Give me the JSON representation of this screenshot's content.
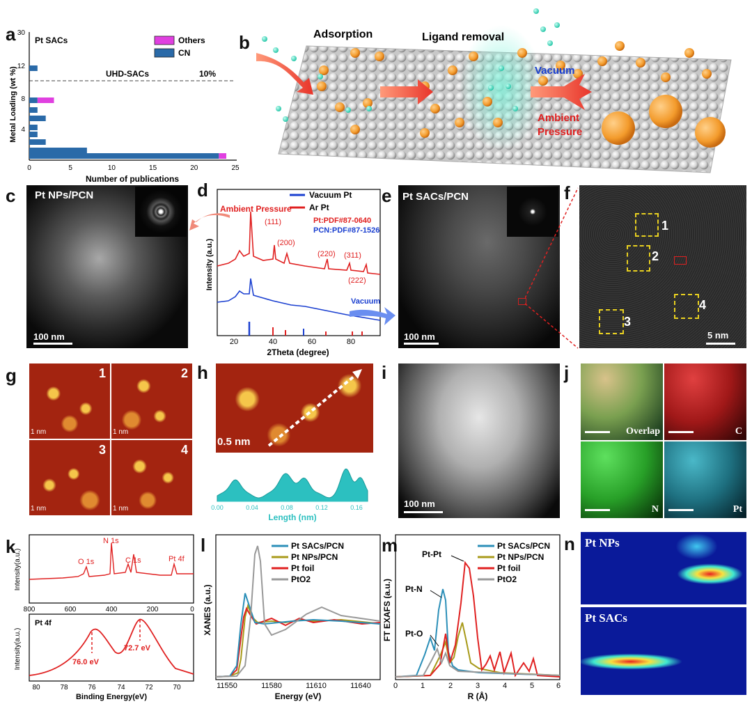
{
  "panel_letters": {
    "a": "a",
    "b": "b",
    "c": "c",
    "d": "d",
    "e": "e",
    "f": "f",
    "g": "g",
    "h": "h",
    "i": "i",
    "j": "j",
    "k": "k",
    "l": "l",
    "m": "m",
    "n": "n"
  },
  "panel_a": {
    "title": "Pt SACs",
    "threshold_label": "UHD-SACs",
    "threshold_value_label": "10%",
    "y_axis_ticks": [
      "4",
      "8",
      "12",
      "30"
    ],
    "x_axis_ticks": [
      "0",
      "5",
      "10",
      "15",
      "20",
      "25"
    ]
  },
  "panel_b": {
    "adsorption": "Adsorption",
    "ligand_removal": "Ligand removal",
    "vacuum": "Vacuum",
    "ambient_pressure_1": "Ambient",
    "ambient_pressure_2": "Pressure"
  },
  "panel_c": {
    "label": "Pt NPs/PCN",
    "scale": "100 nm"
  },
  "panel_d": {
    "ambient_pressure": "Ambient Pressure",
    "pdf_pt": "Pt:PDF#87-0640",
    "pdf_pcn": "PCN:PDF#87-1526",
    "vacuum": "Vacuum",
    "peaks": [
      "(111)",
      "(200)",
      "(220)",
      "(311)",
      "(222)"
    ]
  },
  "panel_e": {
    "label": "Pt SACs/PCN",
    "scale": "100 nm"
  },
  "panel_f": {
    "scale": "5 nm",
    "boxes": [
      "1",
      "2",
      "3",
      "4"
    ]
  },
  "panel_g": {
    "tiles": [
      "1",
      "2",
      "3",
      "4"
    ],
    "scales": [
      "1 nm",
      "1 nm",
      "1 nm",
      "1 nm"
    ]
  },
  "panel_h": {
    "scale": "0.5 nm",
    "x_ticks": [
      "0.00",
      "0.04",
      "0.08",
      "0.12",
      "0.16"
    ]
  },
  "panel_i": {
    "scale": "100 nm"
  },
  "panel_j": {
    "labels": [
      "Overlap",
      "C",
      "N",
      "Pt"
    ]
  },
  "panel_k": {
    "top_peaks": [
      "O 1s",
      "N 1s",
      "C 1s",
      "Pt 4f"
    ],
    "top_x_ticks": [
      "800",
      "600",
      "400",
      "200",
      "0"
    ],
    "bottom_title": "Pt 4f",
    "bottom_peaks": [
      "76.0 eV",
      "72.7 eV"
    ],
    "bottom_x_ticks": [
      "80",
      "78",
      "76",
      "74",
      "72",
      "70"
    ]
  },
  "panel_l": {
    "x_ticks": [
      "11550",
      "11580",
      "11610",
      "11640"
    ]
  },
  "panel_m": {
    "x_ticks": [
      "0",
      "1",
      "2",
      "3",
      "4",
      "5",
      "6"
    ],
    "peak_labels": [
      "Pt-Pt",
      "Pt-N",
      "Pt-O"
    ]
  },
  "panel_n": {
    "top": "Pt NPs",
    "bottom": "Pt SACs"
  },
  "colors": {
    "cn": "#2a6aa8",
    "others": "#e040e0",
    "red": "#e02020",
    "blue": "#1a3fd0",
    "olive": "#a89a1a",
    "gray": "#999999",
    "cyan": "#2b8fb8"
  },
  "chart_data": [
    {
      "type": "bar",
      "orientation": "horizontal",
      "xlabel": "Number of publications",
      "ylabel": "Metal Loading (wt %)",
      "xlim": [
        0,
        25
      ],
      "series": [
        {
          "name": "CN",
          "values": [
            23,
            7,
            2,
            1,
            1,
            2,
            1,
            1,
            1
          ]
        },
        {
          "name": "Others",
          "values": [
            1,
            0,
            0,
            0,
            0,
            0,
            0,
            2,
            0
          ]
        }
      ],
      "categories": [
        "~1",
        "~2",
        "~3",
        "~4",
        "~5",
        "~6",
        "~7",
        "~8",
        "~12"
      ],
      "threshold": 10
    },
    {
      "type": "line",
      "xlabel": "2Theta (degree)",
      "ylabel": "Intensity (a.u.)",
      "xlim": [
        10,
        90
      ],
      "series": [
        {
          "name": "Vacuum Pt"
        },
        {
          "name": "Ar Pt"
        }
      ]
    },
    {
      "type": "line",
      "xlabel": "Length (nm)",
      "xlim": [
        0.0,
        0.17
      ]
    },
    {
      "type": "line",
      "xlabel": "Binding Energy(eV)",
      "ylabel": "Intensity(a.u.)"
    },
    {
      "type": "line",
      "xlabel": "Energy (eV)",
      "ylabel": "XANES (a.u.)",
      "series": [
        {
          "name": "Pt SACs/PCN"
        },
        {
          "name": "Pt NPs/PCN"
        },
        {
          "name": "Pt foil"
        },
        {
          "name": "PtO2"
        }
      ]
    },
    {
      "type": "line",
      "xlabel": "R (Å)",
      "ylabel": "FT EXAFS (a.u.)",
      "xlim": [
        0,
        6
      ],
      "series": [
        {
          "name": "Pt SACs/PCN"
        },
        {
          "name": "Pt NPs/PCN"
        },
        {
          "name": "Pt foil"
        },
        {
          "name": "PtO2"
        }
      ]
    }
  ]
}
